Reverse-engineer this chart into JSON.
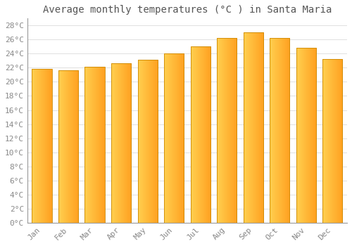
{
  "title": "Average monthly temperatures (°C ) in Santa Maria",
  "months": [
    "Jan",
    "Feb",
    "Mar",
    "Apr",
    "May",
    "Jun",
    "Jul",
    "Aug",
    "Sep",
    "Oct",
    "Nov",
    "Dec"
  ],
  "values": [
    21.8,
    21.6,
    22.1,
    22.6,
    23.1,
    24.0,
    25.0,
    26.2,
    27.0,
    26.2,
    24.8,
    23.2
  ],
  "bar_color_left": "#FFD050",
  "bar_color_right": "#FFA020",
  "bar_edge_color": "#CC8800",
  "ylim": [
    0,
    29
  ],
  "yticks": [
    0,
    2,
    4,
    6,
    8,
    10,
    12,
    14,
    16,
    18,
    20,
    22,
    24,
    26,
    28
  ],
  "ytick_labels": [
    "0°C",
    "2°C",
    "4°C",
    "6°C",
    "8°C",
    "10°C",
    "12°C",
    "14°C",
    "16°C",
    "18°C",
    "20°C",
    "22°C",
    "24°C",
    "26°C",
    "28°C"
  ],
  "grid_color": "#e0e0e0",
  "bg_color": "#ffffff",
  "title_fontsize": 10,
  "tick_fontsize": 8,
  "tick_color": "#888888",
  "title_color": "#555555",
  "font_family": "monospace",
  "bar_width": 0.75
}
